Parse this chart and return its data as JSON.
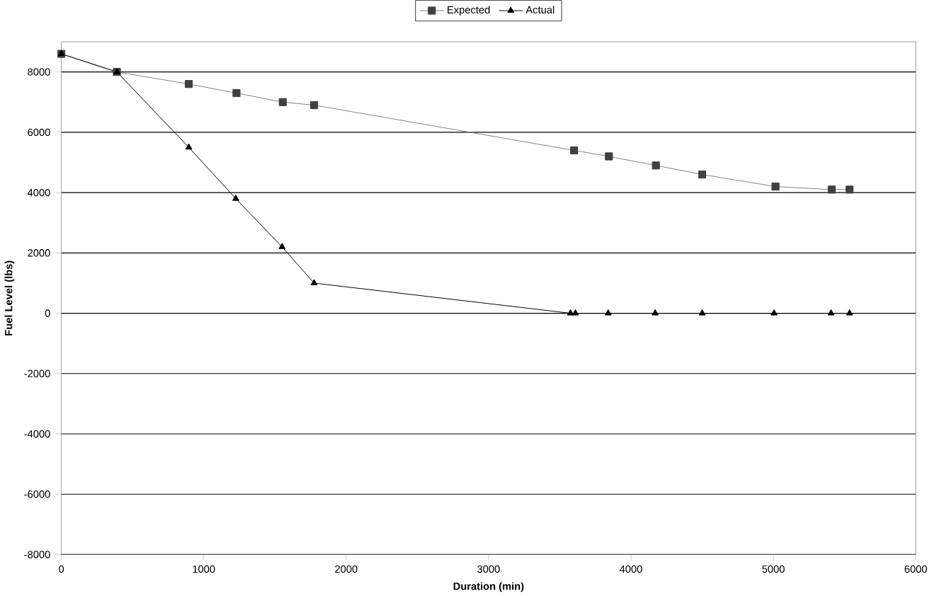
{
  "chart_data": {
    "type": "line",
    "xlabel": "Duration (min)",
    "ylabel": "Fuel Level (lbs)",
    "xlim": [
      0,
      6000
    ],
    "xticks": [
      0,
      1000,
      2000,
      3000,
      4000,
      5000,
      6000
    ],
    "ylim": [
      -8000,
      9000
    ],
    "yticks": [
      -8000,
      -6000,
      -4000,
      -2000,
      0,
      2000,
      4000,
      6000,
      8000
    ],
    "grid": "y",
    "legend": "top",
    "series": [
      {
        "name": "Expected",
        "color": "#404040",
        "marker": "square",
        "x": [
          0,
          390,
          895,
          1230,
          1555,
          1775,
          3600,
          3845,
          4175,
          4500,
          5015,
          5410,
          5535
        ],
        "values": [
          8600,
          8000,
          7600,
          7300,
          7000,
          6900,
          5400,
          5200,
          4900,
          4600,
          4200,
          4100,
          4100
        ]
      },
      {
        "name": "Actual",
        "color": "#000000",
        "marker": "triangle",
        "x": [
          0,
          390,
          895,
          1225,
          1550,
          1775,
          3575,
          3610,
          3840,
          4170,
          4500,
          5005,
          5405,
          5535
        ],
        "values": [
          8600,
          8000,
          5500,
          3800,
          2200,
          1000,
          0,
          0,
          0,
          0,
          0,
          0,
          0,
          0
        ]
      }
    ]
  }
}
